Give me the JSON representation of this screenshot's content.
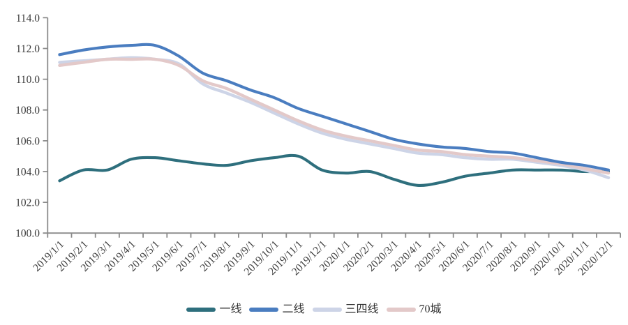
{
  "chart": {
    "background": "#ffffff",
    "axis_color": "#8a8a8a",
    "text_color": "#3c3c3c"
  },
  "chart_data": {
    "type": "line",
    "title": "",
    "xlabel": "",
    "ylabel": "",
    "grid": false,
    "smooth": true,
    "legend_position": "bottom",
    "ylim": [
      100,
      114
    ],
    "y_step": 2,
    "y_tick_labels": [
      "114.0",
      "112.0",
      "110.0",
      "108.0",
      "106.0",
      "104.0",
      "102.0",
      "100.0"
    ],
    "x": [
      "2019/1/1",
      "2019/2/1",
      "2019/3/1",
      "2019/4/1",
      "2019/5/1",
      "2019/6/1",
      "2019/7/1",
      "2019/8/1",
      "2019/9/1",
      "2019/10/1",
      "2019/11/1",
      "2019/12/1",
      "2020/1/1",
      "2020/2/1",
      "2020/3/1",
      "2020/4/1",
      "2020/5/1",
      "2020/6/1",
      "2020/7/1",
      "2020/8/1",
      "2020/9/1",
      "2020/10/1",
      "2020/11/1",
      "2020/12/1"
    ],
    "series": [
      {
        "name": "一线",
        "color": "#2e6f7d",
        "values": [
          103.4,
          104.1,
          104.1,
          104.8,
          104.9,
          104.7,
          104.5,
          104.4,
          104.7,
          104.9,
          105.0,
          104.1,
          103.9,
          104.0,
          103.5,
          103.1,
          103.3,
          103.7,
          103.9,
          104.1,
          104.1,
          104.1,
          104.0,
          104.0
        ]
      },
      {
        "name": "二线",
        "color": "#4a7dc0",
        "values": [
          111.6,
          111.9,
          112.1,
          112.2,
          112.2,
          111.5,
          110.4,
          109.9,
          109.3,
          108.8,
          108.1,
          107.6,
          107.1,
          106.6,
          106.1,
          105.8,
          105.6,
          105.5,
          105.3,
          105.2,
          104.9,
          104.6,
          104.4,
          104.1
        ]
      },
      {
        "name": "三四线",
        "color": "#cdd4e7",
        "values": [
          111.1,
          111.2,
          111.3,
          111.4,
          111.3,
          111.0,
          109.7,
          109.1,
          108.5,
          107.8,
          107.1,
          106.5,
          106.1,
          105.8,
          105.5,
          105.2,
          105.1,
          104.9,
          104.8,
          104.8,
          104.6,
          104.4,
          104.1,
          103.6
        ]
      },
      {
        "name": "70城",
        "color": "#e3c9c9",
        "values": [
          110.9,
          111.1,
          111.3,
          111.3,
          111.3,
          110.9,
          109.9,
          109.4,
          108.7,
          108.0,
          107.3,
          106.7,
          106.3,
          106.0,
          105.7,
          105.4,
          105.3,
          105.1,
          105.0,
          104.9,
          104.7,
          104.5,
          104.2,
          103.9
        ]
      }
    ]
  }
}
